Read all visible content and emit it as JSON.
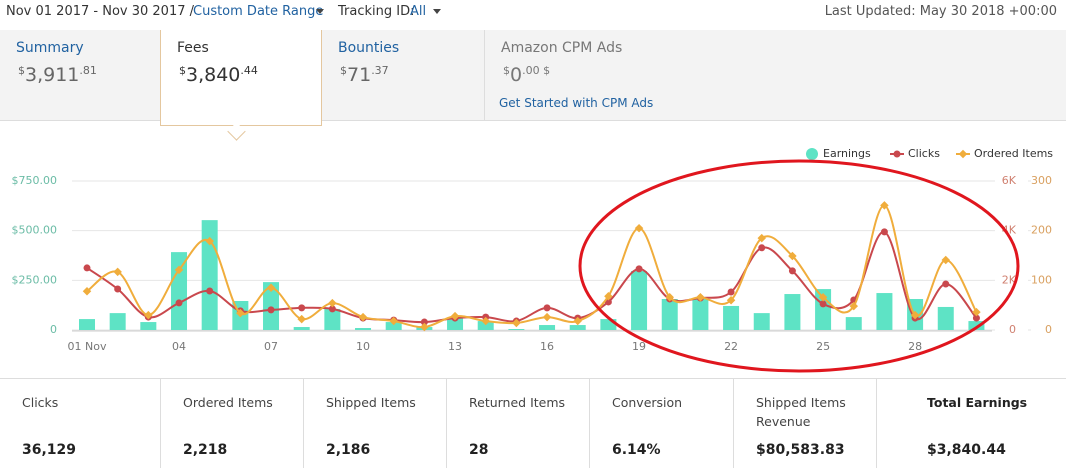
{
  "header": {
    "date_range": "Nov 01 2017 - Nov 30 2017 /",
    "custom_range_link": "Custom Date Range",
    "tracking_label": "Tracking ID:",
    "tracking_value": "All",
    "last_updated": "Last Updated: May 30 2018 +00:00"
  },
  "tabs": [
    {
      "name": "Summary",
      "currency": "$",
      "whole": "3,911",
      "cents": ".81"
    },
    {
      "name": "Fees",
      "currency": "$",
      "whole": "3,840",
      "cents": ".44"
    },
    {
      "name": "Bounties",
      "currency": "$",
      "whole": "71",
      "cents": ".37"
    },
    {
      "name": "Amazon CPM Ads",
      "currency": "$",
      "whole": "0",
      "cents": ".00 $",
      "link": "Get Started with CPM Ads"
    }
  ],
  "chart_data": {
    "type": "bar-line",
    "categories": [
      "01 Nov",
      null,
      null,
      "04",
      null,
      null,
      "07",
      null,
      null,
      "10",
      null,
      null,
      "13",
      null,
      null,
      "16",
      null,
      null,
      "19",
      null,
      null,
      "22",
      null,
      null,
      "25",
      null,
      null,
      "28",
      null,
      null
    ],
    "ylim": [
      0,
      750
    ],
    "yticks": [
      0,
      {
        "value": 250,
        "label": "$250.00"
      },
      {
        "value": 500,
        "label": "$500.00"
      },
      {
        "value": 750,
        "label": "$750.00"
      }
    ],
    "y2lim": [
      0,
      6000
    ],
    "y2ticks": [
      0,
      {
        "value": 2000,
        "label": "2K"
      },
      {
        "value": 4000,
        "label": "4K"
      },
      {
        "value": 6000,
        "label": "6K"
      }
    ],
    "y3lim": [
      0,
      300
    ],
    "y3ticks": [
      0,
      100,
      200,
      300
    ],
    "grid": true,
    "legend": "top-right",
    "series": [
      {
        "name": "Earnings",
        "color": "#5ee3c5",
        "axis": "y",
        "kind": "bar",
        "values": [
          55,
          85,
          40,
          392,
          553,
          146,
          241,
          15,
          106,
          10,
          40,
          15,
          60,
          45,
          5,
          25,
          25,
          55,
          297,
          156,
          161,
          121,
          85,
          181,
          206,
          65,
          186,
          156,
          116,
          45
        ]
      },
      {
        "name": "Clicks",
        "color": "#c9484d",
        "axis": "y2",
        "kind": "line",
        "values": [
          2500,
          1650,
          520,
          1090,
          1570,
          770,
          810,
          890,
          850,
          480,
          400,
          320,
          480,
          520,
          360,
          890,
          480,
          1130,
          2460,
          1250,
          1290,
          1530,
          3310,
          2380,
          1050,
          1210,
          3950,
          480,
          1850,
          480
        ]
      },
      {
        "name": "Ordered Items",
        "color": "#f0ad3c",
        "axis": "y3",
        "kind": "line",
        "values": [
          78,
          117,
          30,
          121,
          179,
          34,
          85,
          22,
          54,
          26,
          18,
          6,
          28,
          18,
          14,
          26,
          18,
          68,
          205,
          66,
          66,
          60,
          185,
          149,
          66,
          48,
          251,
          30,
          141,
          36
        ]
      }
    ]
  },
  "stats": [
    {
      "label": "Clicks",
      "value": "36,129"
    },
    {
      "label": "Ordered Items",
      "value": "2,218"
    },
    {
      "label": "Shipped Items",
      "value": "2,186"
    },
    {
      "label": "Returned Items",
      "value": "28"
    },
    {
      "label": "Conversion",
      "value": "6.14%"
    },
    {
      "label": "Shipped Items Revenue",
      "value": "$80,583.83"
    },
    {
      "label": "Total Earnings",
      "value": "$3,840.44"
    }
  ]
}
